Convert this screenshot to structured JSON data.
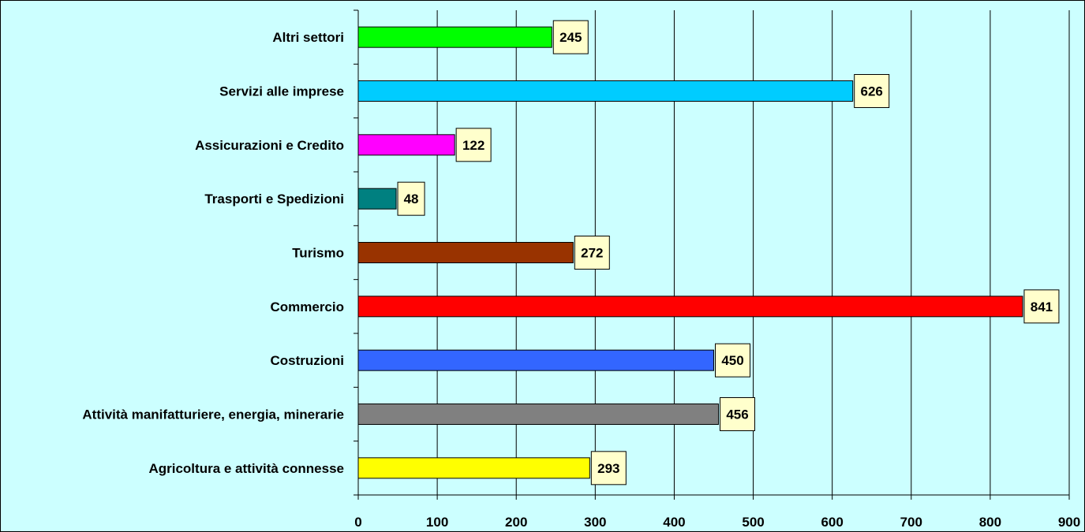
{
  "chart_data": {
    "type": "bar",
    "orientation": "horizontal",
    "title": "",
    "xlabel": "",
    "ylabel": "",
    "categories": [
      "Agricoltura e attività connesse",
      "Attività manifatturiere, energia, minerarie",
      "Costruzioni",
      "Commercio",
      "Turismo",
      "Trasporti e Spedizioni",
      "Assicurazioni e Credito",
      "Servizi alle imprese",
      "Altri settori"
    ],
    "values": [
      293,
      456,
      450,
      841,
      272,
      48,
      122,
      626,
      245
    ],
    "colors": [
      "#ffff00",
      "#808080",
      "#3366ff",
      "#ff0000",
      "#993300",
      "#008080",
      "#ff00ff",
      "#00ccff",
      "#00ff00"
    ],
    "xlim": [
      0,
      900
    ],
    "xticks": [
      0,
      100,
      200,
      300,
      400,
      500,
      600,
      700,
      800,
      900
    ],
    "grid": "vertical",
    "legend": "none",
    "data_labels": true,
    "background": "#ccffff",
    "data_label_background": "#ffffcc"
  }
}
